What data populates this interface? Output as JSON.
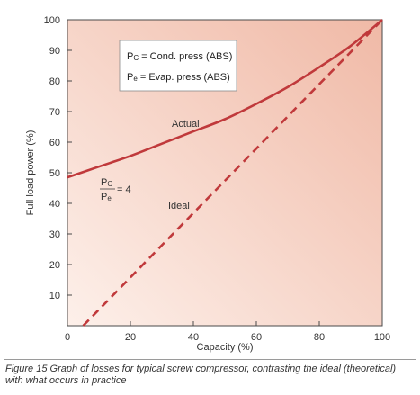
{
  "chart_data": {
    "type": "line",
    "xlabel": "Capacity (%)",
    "ylabel": "Full load power (%)",
    "xlim": [
      0,
      100
    ],
    "ylim": [
      0,
      100
    ],
    "xticks": [
      "0",
      "20",
      "40",
      "60",
      "80",
      "100"
    ],
    "yticks": [
      "10",
      "20",
      "30",
      "40",
      "50",
      "60",
      "70",
      "80",
      "90",
      "100"
    ],
    "grid": false,
    "series": [
      {
        "name": "Actual",
        "style": "solid",
        "color": "#c0393b",
        "x": [
          0,
          10,
          20,
          30,
          40,
          50,
          60,
          70,
          80,
          90,
          100
        ],
        "y": [
          48.5,
          52,
          55.5,
          59.5,
          63.5,
          67.5,
          72.5,
          78,
          84.5,
          91.5,
          100
        ]
      },
      {
        "name": "Ideal",
        "style": "dashed",
        "color": "#c0393b",
        "x": [
          5,
          100
        ],
        "y": [
          0,
          100
        ]
      }
    ],
    "annotations": {
      "actual": "Actual",
      "ideal": "Ideal",
      "ratio_num": "P",
      "ratio_num_sub": "C",
      "ratio_den": "P",
      "ratio_den_sub": "e",
      "ratio_value": "= 4"
    },
    "legend": {
      "position": "top-left",
      "items": [
        {
          "sym": "P",
          "sub": "C",
          "text": " = Cond. press (ABS)"
        },
        {
          "sym": "P",
          "sub": "e",
          "text": " = Evap. press (ABS)"
        }
      ]
    },
    "colors": {
      "background_light": "#fdf0ea",
      "background_dark": "#f0b9a6",
      "line": "#c0393b"
    }
  },
  "caption": "Figure 15   Graph of losses for typical screw compressor, contrasting the ideal (theoretical) with what occurs in practice"
}
